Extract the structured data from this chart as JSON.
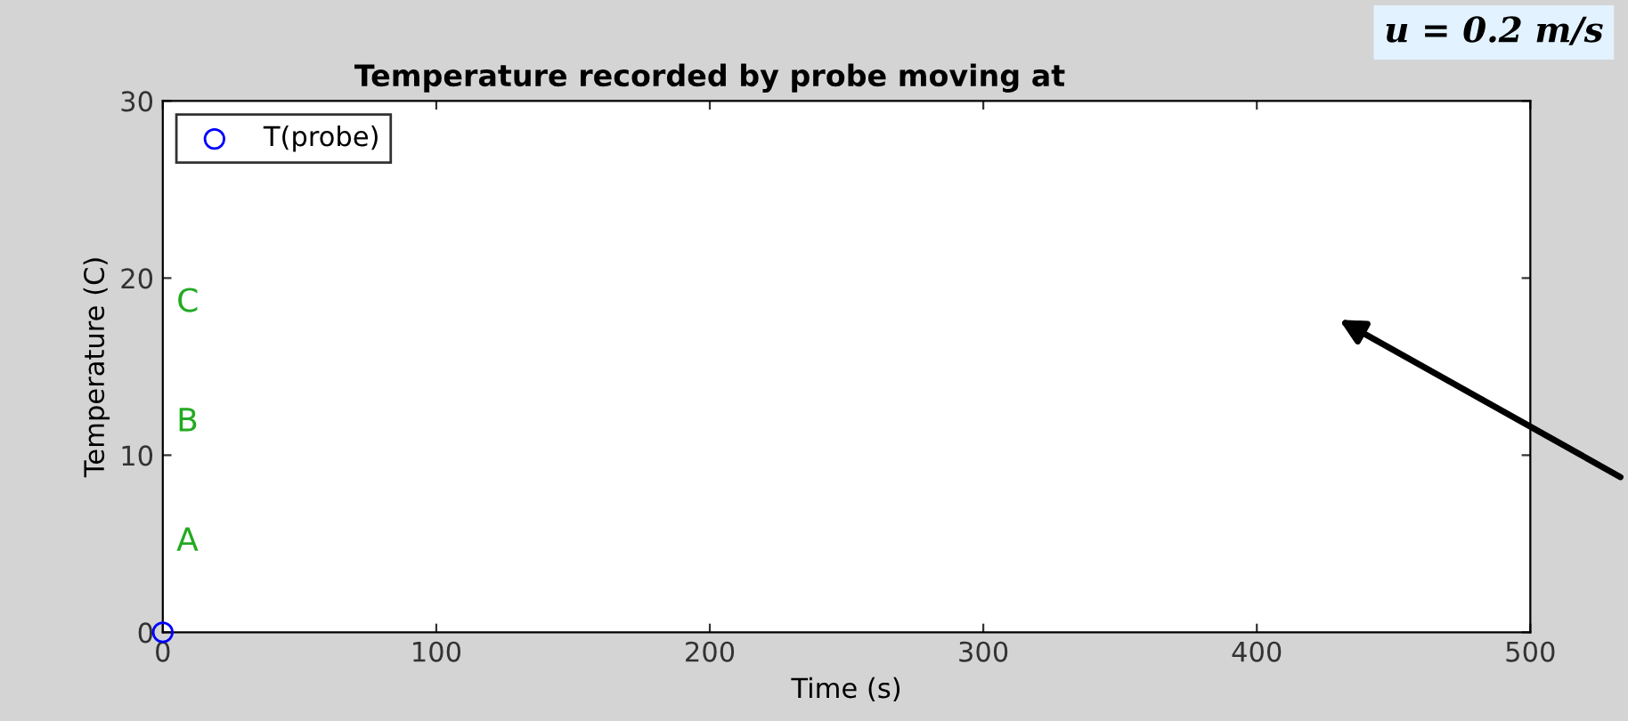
{
  "chart_data": {
    "type": "scatter",
    "title": "Temperature recorded by probe moving at",
    "xlabel": "Time (s)",
    "ylabel": "Temperature (C)",
    "x": [
      0
    ],
    "series": [
      {
        "name": "T(probe)",
        "color": "#0000ff",
        "values": [
          0
        ]
      }
    ],
    "marker": "circle",
    "legend": "top left",
    "grid": false,
    "xlim": [
      0,
      500
    ],
    "xticks": [
      0,
      100,
      200,
      300,
      400,
      500
    ],
    "ylim": [
      0,
      30
    ],
    "yticks": [
      0,
      10,
      20,
      30
    ],
    "annotations": [
      "A",
      "B",
      "C",
      "u = 0.2 m/s"
    ]
  }
}
